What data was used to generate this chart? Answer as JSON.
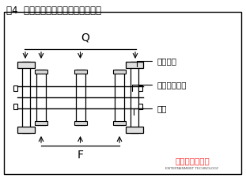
{
  "title": "图4  柔性柱链节组件载荷传递示意图",
  "title_fontsize": 8.5,
  "bg_color": "#ffffff",
  "border_color": "#000000",
  "label_roller_chain": "滚子链节",
  "label_std_axle": "标准滚子链轴",
  "label_side_plate": "侧板",
  "label_Q": "Q",
  "label_F": "F",
  "watermark_text1": "中国演艺科技网",
  "watermark_text2": "ENTERTAINMENT TECHNOLOGY",
  "fig_width": 3.11,
  "fig_height": 2.35,
  "dpi": 100
}
